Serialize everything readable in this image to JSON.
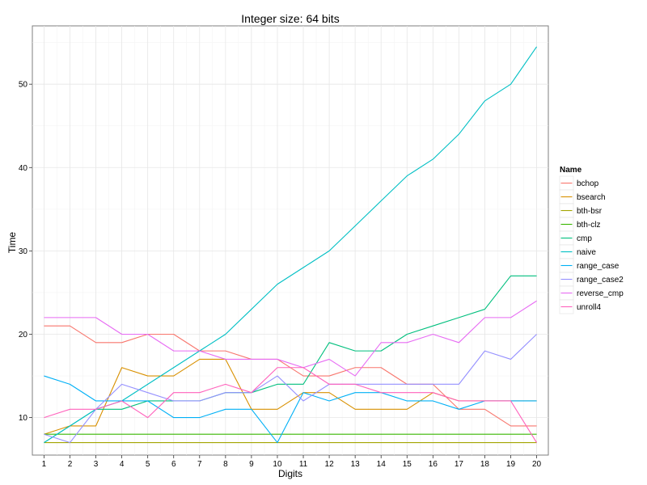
{
  "chart_data": {
    "type": "line",
    "title": "Integer size: 64 bits",
    "xlabel": "Digits",
    "ylabel": "Time",
    "x": [
      1,
      2,
      3,
      4,
      5,
      6,
      7,
      8,
      9,
      10,
      11,
      12,
      13,
      14,
      15,
      16,
      17,
      18,
      19,
      20
    ],
    "xlim": [
      0.55,
      20.45
    ],
    "ylim": [
      5.5,
      57
    ],
    "yticks": [
      10,
      20,
      30,
      40,
      50
    ],
    "grid": true,
    "legend": {
      "title": "Name",
      "placement": "right"
    },
    "series": [
      {
        "name": "bchop",
        "color": "#F8766D",
        "values": [
          21,
          21,
          19,
          19,
          20,
          20,
          18,
          18,
          17,
          17,
          15,
          15,
          16,
          16,
          14,
          14,
          11,
          11,
          9,
          9
        ]
      },
      {
        "name": "bsearch",
        "color": "#D89000",
        "values": [
          8,
          9,
          9,
          16,
          15,
          15,
          17,
          17,
          11,
          11,
          13,
          13,
          11,
          11,
          11,
          13,
          12,
          12,
          12,
          12
        ]
      },
      {
        "name": "bth-bsr",
        "color": "#A3A500",
        "values": [
          7,
          7,
          7,
          7,
          7,
          7,
          7,
          7,
          7,
          7,
          7,
          7,
          7,
          7,
          7,
          7,
          7,
          7,
          7,
          7
        ]
      },
      {
        "name": "bth-clz",
        "color": "#39B600",
        "values": [
          8,
          8,
          8,
          8,
          8,
          8,
          8,
          8,
          8,
          8,
          8,
          8,
          8,
          8,
          8,
          8,
          8,
          8,
          8,
          8
        ]
      },
      {
        "name": "cmp",
        "color": "#00BF7D",
        "values": [
          7,
          9,
          11,
          11,
          12,
          12,
          12,
          13,
          13,
          14,
          14,
          19,
          18,
          18,
          20,
          21,
          22,
          23,
          27,
          27
        ]
      },
      {
        "name": "naive",
        "color": "#00BFC4",
        "values": [
          7,
          9,
          11,
          12,
          14,
          16,
          18,
          20,
          23,
          26,
          28,
          30,
          33,
          36,
          39,
          41,
          44,
          48,
          50,
          54.5
        ]
      },
      {
        "name": "range_case",
        "color": "#00B0F6",
        "values": [
          15,
          14,
          12,
          12,
          12,
          10,
          10,
          11,
          11,
          7,
          13,
          12,
          13,
          13,
          12,
          12,
          11,
          12,
          12,
          12
        ]
      },
      {
        "name": "range_case2",
        "color": "#9590FF",
        "values": [
          8,
          7,
          11,
          14,
          13,
          12,
          12,
          13,
          13,
          15,
          12,
          14,
          14,
          14,
          14,
          14,
          14,
          18,
          17,
          20
        ]
      },
      {
        "name": "reverse_cmp",
        "color": "#E76BF3",
        "values": [
          22,
          22,
          22,
          20,
          20,
          18,
          18,
          17,
          17,
          17,
          16,
          17,
          15,
          19,
          19,
          20,
          19,
          22,
          22,
          24
        ]
      },
      {
        "name": "unroll4",
        "color": "#FF62BC",
        "values": [
          10,
          11,
          11,
          12,
          10,
          13,
          13,
          14,
          13,
          16,
          16,
          14,
          14,
          13,
          13,
          13,
          12,
          12,
          12,
          7
        ]
      }
    ]
  }
}
